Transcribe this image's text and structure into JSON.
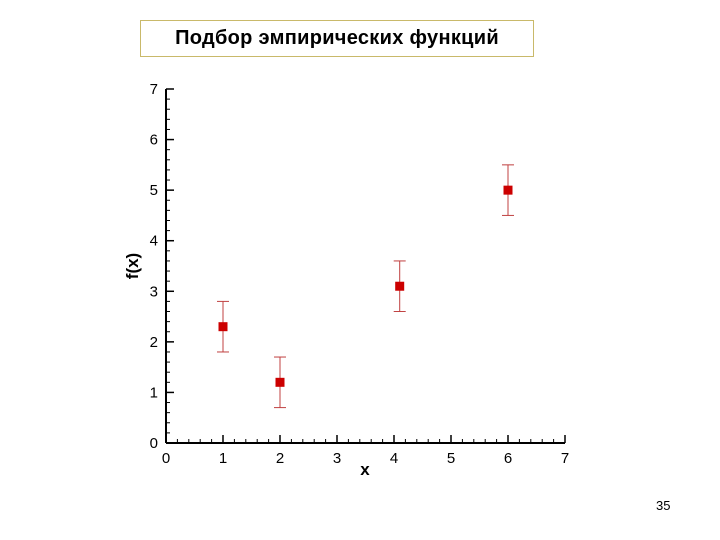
{
  "slide": {
    "title": "Подбор эмпирических функций",
    "page_number": "35"
  },
  "chart_data": {
    "type": "scatter",
    "title": "",
    "xlabel": "x",
    "ylabel": "f(x)",
    "xlim": [
      0,
      7
    ],
    "ylim": [
      0,
      7
    ],
    "xticks": [
      "0",
      "1",
      "2",
      "3",
      "4",
      "5",
      "6",
      "7"
    ],
    "yticks": [
      "0",
      "1",
      "2",
      "3",
      "4",
      "5",
      "6",
      "7"
    ],
    "grid": false,
    "points": [
      {
        "x": 1,
        "y": 2.3,
        "err": 0.5
      },
      {
        "x": 2,
        "y": 1.2,
        "err": 0.5
      },
      {
        "x": 4.1,
        "y": 3.1,
        "err": 0.5
      },
      {
        "x": 6,
        "y": 5.0,
        "err": 0.5
      }
    ],
    "marker": "square",
    "colors": {
      "marker": "#cc0000",
      "errorbar": "#c04040",
      "axis": "#000000"
    }
  }
}
